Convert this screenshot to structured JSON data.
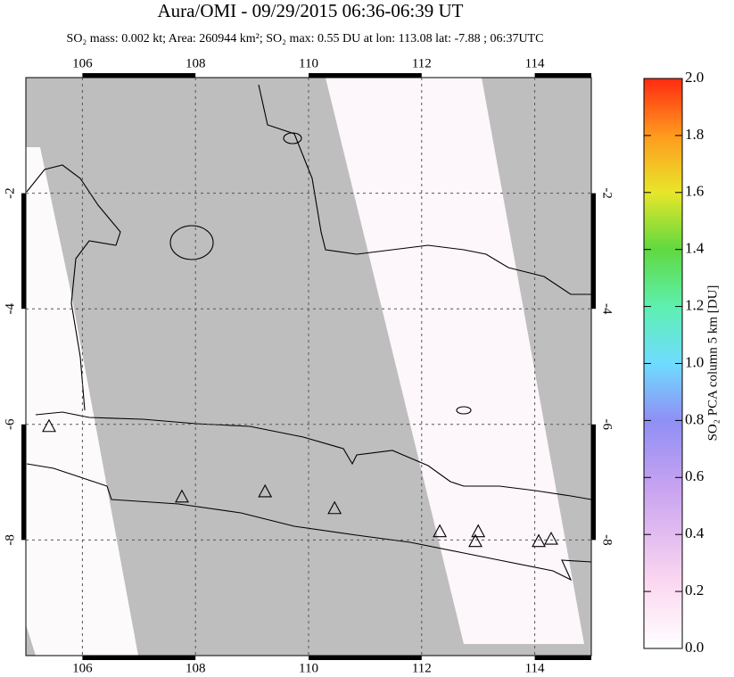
{
  "chart_data": {
    "type": "map",
    "title": "Aura/OMI - 09/29/2015 06:36-06:39 UT",
    "subtitle": "SO₂ mass: 0.002 kt; Area: 260944 km²; SO₂ max: 0.55 DU at lon: 113.08 lat: -7.88 ; 06:37UTC",
    "xlim": [
      105,
      115
    ],
    "ylim": [
      -10,
      0
    ],
    "xticks": [
      106,
      108,
      110,
      112,
      114
    ],
    "yticks": [
      -2,
      -4,
      -6,
      -8
    ],
    "grid": true,
    "volcanoes": {
      "x": [
        105.41,
        107.76,
        109.23,
        110.46,
        112.32,
        113.0,
        112.95,
        114.07,
        114.29
      ],
      "y": [
        -6.03,
        -7.25,
        -7.16,
        -7.45,
        -7.85,
        -7.85,
        -8.02,
        -8.02,
        -7.98
      ]
    },
    "colorbar": {
      "label": "SO₂ PCA column 5 km [DU]",
      "lim": [
        0,
        2
      ],
      "ticks": [
        {
          "value": 0,
          "label": "0.0"
        },
        {
          "value": 0.2,
          "label": "0.2"
        },
        {
          "value": 0.4,
          "label": "0.4"
        },
        {
          "value": 0.6,
          "label": "0.6"
        },
        {
          "value": 0.8,
          "label": "0.8"
        },
        {
          "value": 1,
          "label": "1.0"
        },
        {
          "value": 1.2,
          "label": "1.2"
        },
        {
          "value": 1.4,
          "label": "1.4"
        },
        {
          "value": 1.6,
          "label": "1.6"
        },
        {
          "value": 1.8,
          "label": "1.8"
        },
        {
          "value": 2,
          "label": "2.0"
        }
      ]
    }
  }
}
